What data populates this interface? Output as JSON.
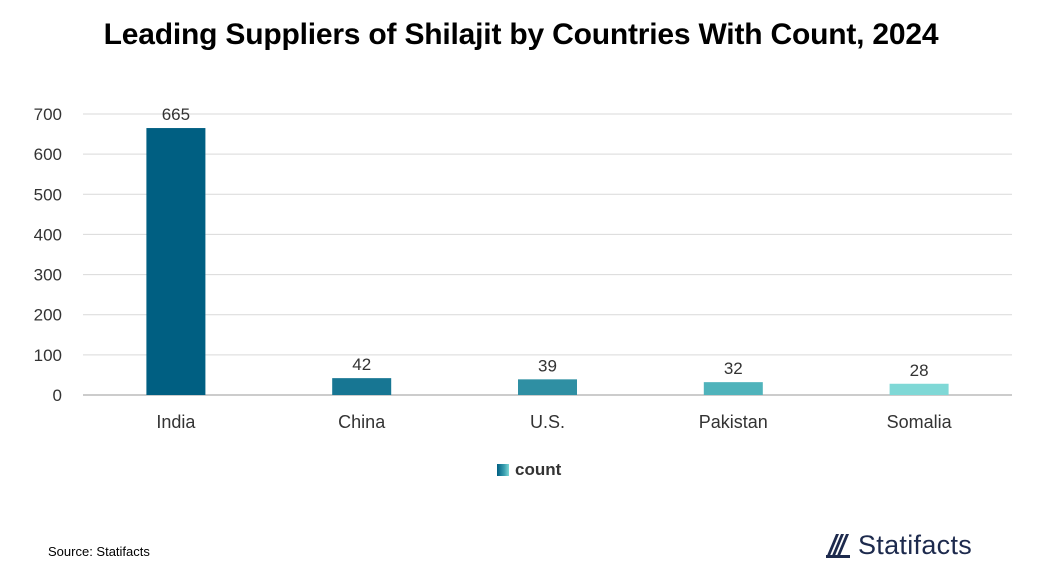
{
  "title": "Leading Suppliers of Shilajit by Countries With Count, 2024",
  "source": "Source: Statifacts",
  "brand": {
    "name": "Statifacts",
    "logo_icon": "statifacts-logo-icon",
    "color": "#1d2a4d"
  },
  "legend": {
    "label": "count",
    "placement": "bottom-center"
  },
  "chart_data": {
    "type": "bar",
    "title": "Leading Suppliers of Shilajit by Countries With Count, 2024",
    "xlabel": "",
    "ylabel": "",
    "categories": [
      "India",
      "China",
      "U.S.",
      "Pakistan",
      "Somalia"
    ],
    "series": [
      {
        "name": "count",
        "values": [
          665,
          42,
          39,
          32,
          28
        ]
      }
    ],
    "bar_colors": [
      "#005f82",
      "#177693",
      "#2f8fa3",
      "#4fb3bb",
      "#7fd8d6"
    ],
    "ylim": [
      0,
      700
    ],
    "yticks": [
      0,
      100,
      200,
      300,
      400,
      500,
      600,
      700
    ],
    "grid": true,
    "data_labels": true,
    "legend_placement": "bottom-center"
  }
}
